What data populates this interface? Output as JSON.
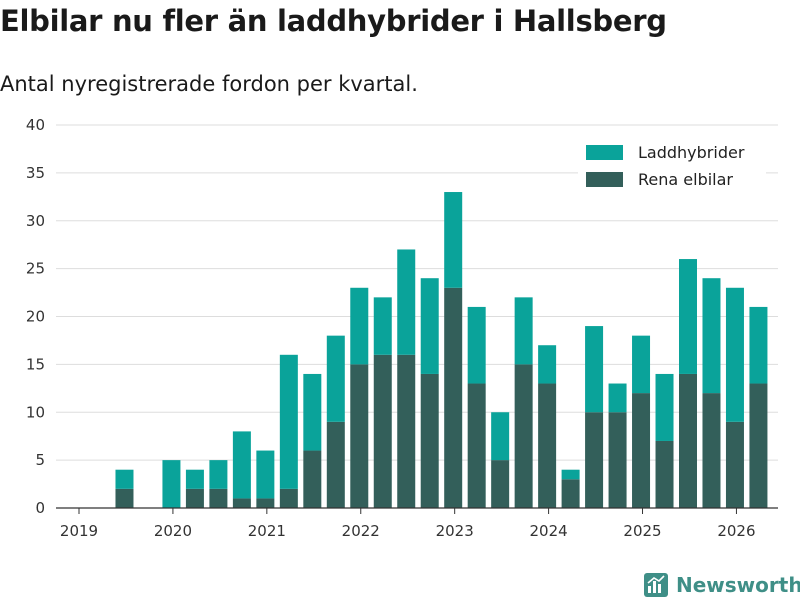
{
  "header": {
    "title": "Elbilar nu fler än laddhybrider i Hallsberg",
    "subtitle": "Antal nyregistrerade fordon per kvartal."
  },
  "brand": {
    "name": "Newsworthy",
    "logo_icon": "bar-chart-icon",
    "color": "#3f8f87"
  },
  "chart_data": {
    "type": "bar",
    "stacked": true,
    "title": "Elbilar nu fler än laddhybrider i Hallsberg",
    "subtitle": "Antal nyregistrerade fordon per kvartal.",
    "xlabel": "",
    "ylabel": "",
    "ylim": [
      0,
      40
    ],
    "yticks": [
      0,
      5,
      10,
      15,
      20,
      25,
      30,
      35,
      40
    ],
    "xticks": [
      "2019",
      "2020",
      "2021",
      "2022",
      "2023",
      "2024",
      "2025",
      "2026"
    ],
    "grid": true,
    "legend_position": "top-right",
    "categories": [
      "2019 Q1",
      "2019 Q2",
      "2019 Q3",
      "2019 Q4",
      "2020 Q1",
      "2020 Q2",
      "2020 Q3",
      "2020 Q4",
      "2021 Q1",
      "2021 Q2",
      "2021 Q3",
      "2021 Q4",
      "2022 Q1",
      "2022 Q2",
      "2022 Q3",
      "2022 Q4",
      "2023 Q1",
      "2023 Q2",
      "2023 Q3",
      "2023 Q4",
      "2024 Q1",
      "2024 Q2",
      "2024 Q3",
      "2024 Q4",
      "2025 Q1",
      "2025 Q2",
      "2025 Q3",
      "2025 Q4",
      "2026 Q1"
    ],
    "series": [
      {
        "name": "Rena elbilar",
        "color": "#335f5a",
        "values": [
          0,
          2,
          0,
          0,
          2,
          2,
          1,
          1,
          2,
          6,
          9,
          15,
          16,
          16,
          14,
          23,
          13,
          5,
          15,
          13,
          3,
          10,
          10,
          12,
          7,
          14,
          12,
          9,
          13
        ]
      },
      {
        "name": "Laddhybrider",
        "color": "#0aa39a",
        "values": [
          0,
          2,
          0,
          5,
          2,
          3,
          7,
          5,
          14,
          8,
          9,
          8,
          6,
          11,
          10,
          10,
          8,
          5,
          7,
          4,
          1,
          9,
          3,
          6,
          7,
          12,
          12,
          14,
          8
        ]
      }
    ],
    "legend": [
      "Laddhybrider",
      "Rena elbilar"
    ]
  }
}
